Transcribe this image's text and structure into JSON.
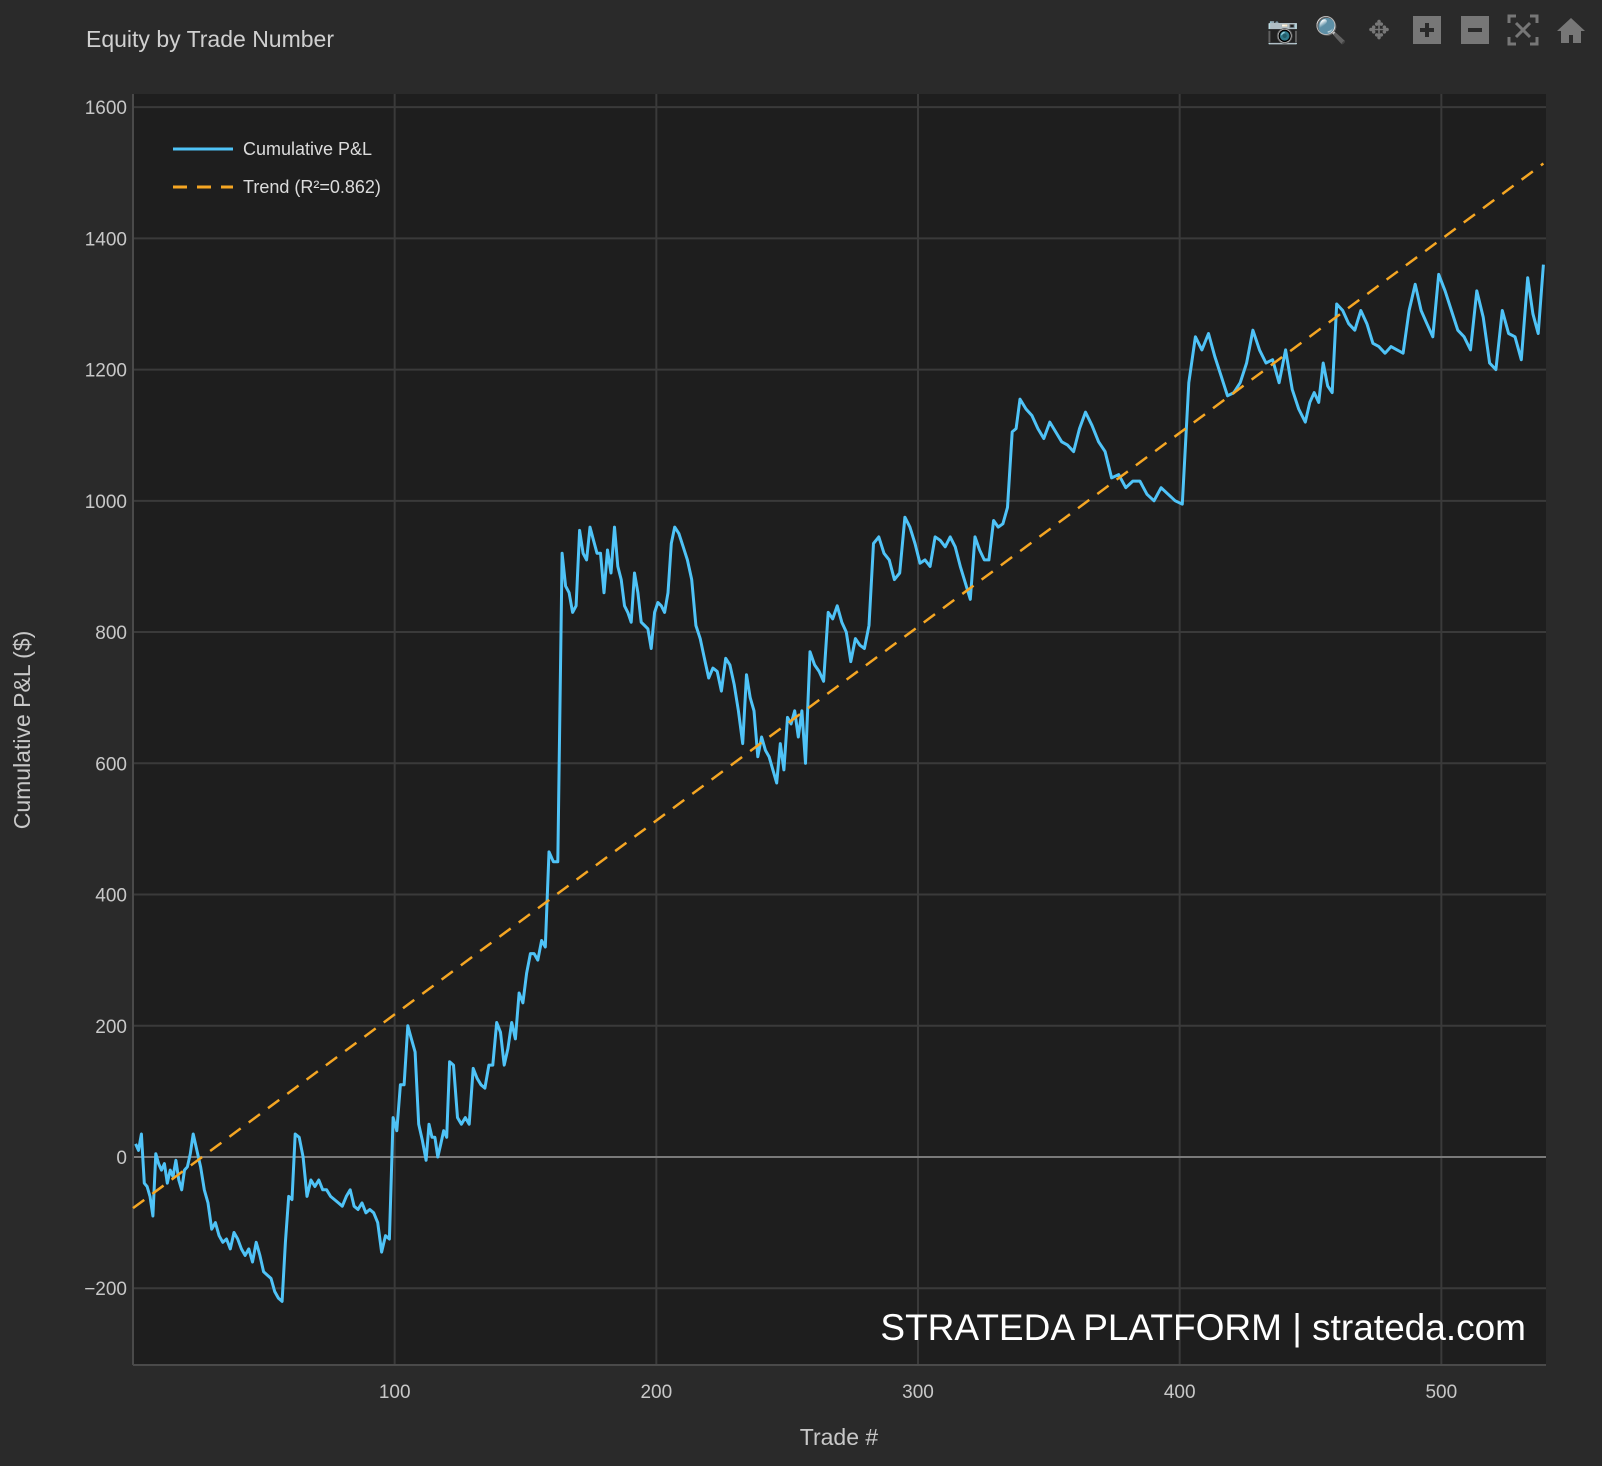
{
  "header": {
    "title": "Equity by Trade Number"
  },
  "toolbar": [
    {
      "name": "camera-icon",
      "label": "Download plot as png"
    },
    {
      "name": "zoom-icon",
      "label": "Zoom"
    },
    {
      "name": "pan-icon",
      "label": "Pan"
    },
    {
      "name": "zoom-in-icon",
      "label": "Zoom in"
    },
    {
      "name": "zoom-out-icon",
      "label": "Zoom out"
    },
    {
      "name": "autoscale-icon",
      "label": "Autoscale"
    },
    {
      "name": "home-icon",
      "label": "Reset axes"
    }
  ],
  "watermark": "STRATEDA PLATFORM | strateda.com",
  "colors": {
    "equity": "#4fc3f7",
    "trend": "#f5a623",
    "zero": "#7a7a7a",
    "grid": "#3a3a3a",
    "plot_bg": "#1e1e1e",
    "paper_bg": "#2a2a2a"
  },
  "chart_data": {
    "type": "line",
    "title": "Equity by Trade Number",
    "xlabel": "Trade #",
    "ylabel": "Cumulative P&L ($)",
    "xlim": [
      0,
      540
    ],
    "ylim": [
      -317,
      1620
    ],
    "xticks": [
      100,
      200,
      300,
      400,
      500
    ],
    "xtick_labels": [
      "100",
      "200",
      "300",
      "400",
      "500"
    ],
    "yticks": [
      -200,
      0,
      200,
      400,
      600,
      800,
      1000,
      1200,
      1400,
      1600
    ],
    "ytick_labels": [
      "−200",
      "0",
      "200",
      "400",
      "600",
      "800",
      "1000",
      "1200",
      "1400",
      "1600"
    ],
    "grid": true,
    "legend_position": "top-left",
    "series": [
      {
        "name": "Cumulative P&L",
        "style": "solid",
        "segments": [
          {
            "x0": 1,
            "x1": 23,
            "v": [
              20,
              10,
              35,
              -40,
              -45,
              -60,
              -90,
              5,
              -10,
              -20,
              -10,
              -40,
              -20,
              -30,
              -5,
              -35,
              -50,
              -20,
              -15,
              5,
              35
            ]
          },
          {
            "x0": 23,
            "x1": 57,
            "v": [
              35,
              10,
              -15,
              -50,
              -70,
              -110,
              -100,
              -120,
              -130,
              -125,
              -140,
              -115,
              -125,
              -140,
              -150,
              -140,
              -160,
              -130,
              -150,
              -175,
              -180,
              -185,
              -205,
              -215,
              -220
            ]
          },
          {
            "x0": 57,
            "x1": 62,
            "v": [
              -220,
              -130,
              -60,
              -65,
              35
            ]
          },
          {
            "x0": 62,
            "x1": 98,
            "v": [
              35,
              30,
              0,
              -60,
              -35,
              -45,
              -35,
              -50,
              -50,
              -60,
              -65,
              -70,
              -75,
              -60,
              -50,
              -75,
              -80,
              -70,
              -85,
              -80,
              -85,
              -100,
              -145,
              -120,
              -125
            ]
          },
          {
            "x0": 98,
            "x1": 105,
            "v": [
              -125,
              60,
              40,
              110,
              110,
              200
            ]
          },
          {
            "x0": 105,
            "x1": 112,
            "v": [
              200,
              180,
              160,
              50,
              25,
              -5
            ]
          },
          {
            "x0": 112,
            "x1": 121,
            "v": [
              -5,
              50,
              30,
              30,
              0,
              20,
              40,
              30,
              145
            ]
          },
          {
            "x0": 121,
            "x1": 139,
            "v": [
              145,
              140,
              60,
              50,
              60,
              50,
              135,
              120,
              110,
              105,
              140,
              140,
              205
            ]
          },
          {
            "x0": 139,
            "x1": 159,
            "v": [
              205,
              190,
              140,
              165,
              205,
              180,
              250,
              235,
              280,
              310,
              310,
              300,
              330,
              320,
              465
            ]
          },
          {
            "x0": 159,
            "x1": 164,
            "v": [
              465,
              450,
              450,
              920
            ]
          },
          {
            "x0": 164,
            "x1": 184,
            "v": [
              920,
              870,
              860,
              830,
              840,
              955,
              920,
              910,
              960,
              940,
              920,
              920,
              860,
              925,
              890,
              960
            ]
          },
          {
            "x0": 184,
            "x1": 207,
            "v": [
              960,
              900,
              880,
              840,
              830,
              815,
              890,
              860,
              815,
              810,
              805,
              775,
              830,
              845,
              840,
              830,
              860,
              935,
              960
            ]
          },
          {
            "x0": 207,
            "x1": 233,
            "v": [
              960,
              950,
              930,
              910,
              880,
              810,
              790,
              760,
              730,
              745,
              740,
              710,
              760,
              750,
              720,
              680,
              630
            ]
          },
          {
            "x0": 233,
            "x1": 246,
            "v": [
              630,
              735,
              700,
              680,
              610,
              640,
              620,
              610,
              590,
              570
            ]
          },
          {
            "x0": 246,
            "x1": 257,
            "v": [
              570,
              630,
              590,
              670,
              660,
              680,
              640,
              680,
              600
            ]
          },
          {
            "x0": 257,
            "x1": 283,
            "v": [
              600,
              770,
              750,
              740,
              725,
              830,
              820,
              840,
              815,
              800,
              755,
              790,
              780,
              775,
              810,
              935
            ]
          },
          {
            "x0": 283,
            "x1": 295,
            "v": [
              935,
              945,
              920,
              910,
              880,
              890,
              975
            ]
          },
          {
            "x0": 295,
            "x1": 320,
            "v": [
              975,
              960,
              935,
              905,
              910,
              900,
              945,
              940,
              930,
              945,
              930,
              900,
              875,
              850
            ]
          },
          {
            "x0": 320,
            "x1": 336,
            "v": [
              850,
              945,
              925,
              910,
              910,
              970,
              960,
              965,
              990,
              1105
            ]
          },
          {
            "x0": 336,
            "x1": 339,
            "v": [
              1105,
              1110,
              1155
            ]
          },
          {
            "x0": 339,
            "x1": 364,
            "v": [
              1155,
              1140,
              1130,
              1110,
              1095,
              1120,
              1105,
              1090,
              1085,
              1075,
              1110,
              1135
            ]
          },
          {
            "x0": 364,
            "x1": 374,
            "v": [
              1135,
              1115,
              1090,
              1075,
              1035
            ]
          },
          {
            "x0": 374,
            "x1": 401,
            "v": [
              1035,
              1040,
              1020,
              1030,
              1030,
              1010,
              1000,
              1020,
              1010,
              1000,
              995
            ]
          },
          {
            "x0": 401,
            "x1": 411,
            "v": [
              995,
              1180,
              1250,
              1230,
              1255
            ]
          },
          {
            "x0": 411,
            "x1": 428,
            "v": [
              1255,
              1220,
              1190,
              1160,
              1165,
              1180,
              1210,
              1260
            ]
          },
          {
            "x0": 428,
            "x1": 448,
            "v": [
              1260,
              1230,
              1210,
              1215,
              1180,
              1230,
              1170,
              1140,
              1120
            ]
          },
          {
            "x0": 448,
            "x1": 460,
            "v": [
              1120,
              1150,
              1165,
              1150,
              1210,
              1175,
              1165,
              1300
            ]
          },
          {
            "x0": 460,
            "x1": 490,
            "v": [
              1300,
              1290,
              1270,
              1260,
              1290,
              1270,
              1240,
              1235,
              1225,
              1235,
              1230,
              1225,
              1290,
              1330
            ]
          },
          {
            "x0": 490,
            "x1": 499,
            "v": [
              1330,
              1290,
              1270,
              1250,
              1345
            ]
          },
          {
            "x0": 499,
            "x1": 533,
            "v": [
              1345,
              1320,
              1290,
              1260,
              1250,
              1230,
              1320,
              1280,
              1210,
              1200,
              1290,
              1255,
              1250,
              1215,
              1340
            ]
          },
          {
            "x0": 533,
            "x1": 539,
            "v": [
              1340,
              1285,
              1255,
              1360
            ]
          }
        ]
      },
      {
        "name": "Trend (R²=0.862)",
        "style": "dashed",
        "x": [
          0,
          539
        ],
        "y": [
          -78,
          1514
        ]
      }
    ]
  }
}
